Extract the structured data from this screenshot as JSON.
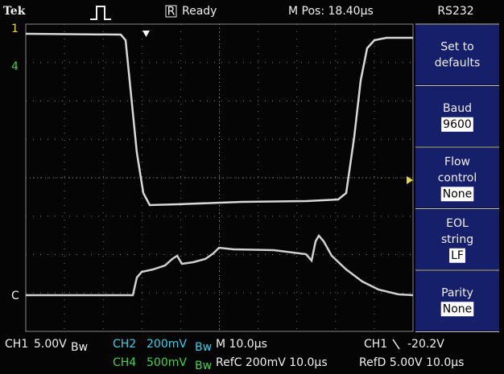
{
  "header": {
    "brand": "Tek",
    "status": "Ready",
    "status_icon": "R",
    "position": "M Pos: 18.40µs",
    "menu_title": "RS232"
  },
  "menu": {
    "items": [
      {
        "label": [
          "Set to",
          "defaults"
        ]
      },
      {
        "label": [
          "Baud"
        ],
        "value": "9600"
      },
      {
        "label": [
          "Flow",
          "control"
        ],
        "value": "None"
      },
      {
        "label": [
          "EOL",
          "string"
        ],
        "value": "LF"
      },
      {
        "label": [
          "Parity"
        ],
        "value": "None"
      }
    ]
  },
  "markers": {
    "ch1": "1",
    "ch4": "4",
    "refc": "C"
  },
  "status": {
    "row1": {
      "ch1": "CH1",
      "ch1_scale": "5.00V",
      "ch1_bw": "Bw",
      "ch2": "CH2",
      "ch2_scale": "200mV",
      "ch2_bw": "Bw",
      "timebase": "M 10.0µs",
      "trigger_source": "CH1",
      "trigger_level": "-20.2V"
    },
    "row2": {
      "ch4": "CH4",
      "ch4_scale": "500mV",
      "ch4_bw": "Bw",
      "refc": "RefC 200mV 10.0µs",
      "refd": "RefD 5.00V 10.0µs"
    }
  }
}
